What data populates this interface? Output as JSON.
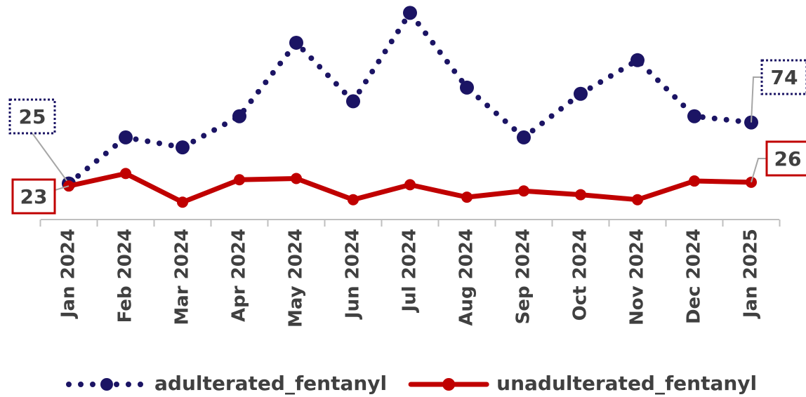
{
  "chart_data": {
    "type": "line",
    "categories": [
      "Jan 2024",
      "Feb 2024",
      "Mar 2024",
      "Apr 2024",
      "May 2024",
      "Jun 2024",
      "Jul 2024",
      "Aug 2024",
      "Sep 2024",
      "Oct 2024",
      "Nov 2024",
      "Dec 2024",
      "Jan 2025"
    ],
    "series": [
      {
        "name": "adulterated_fentanyl",
        "color": "#1b1464",
        "style": "dotted",
        "values": [
          25,
          62,
          54,
          79,
          138,
          91,
          162,
          102,
          62,
          97,
          124,
          79,
          74
        ],
        "label_indices": [
          0,
          12
        ]
      },
      {
        "name": "unadulterated_fentanyl",
        "color": "#c00000",
        "style": "solid",
        "values": [
          23,
          33,
          10,
          28,
          29,
          12,
          24,
          14,
          19,
          16,
          12,
          27,
          26
        ],
        "label_indices": [
          0,
          12
        ]
      }
    ],
    "ylim": [
      0,
      165
    ],
    "legend": "bottom"
  }
}
